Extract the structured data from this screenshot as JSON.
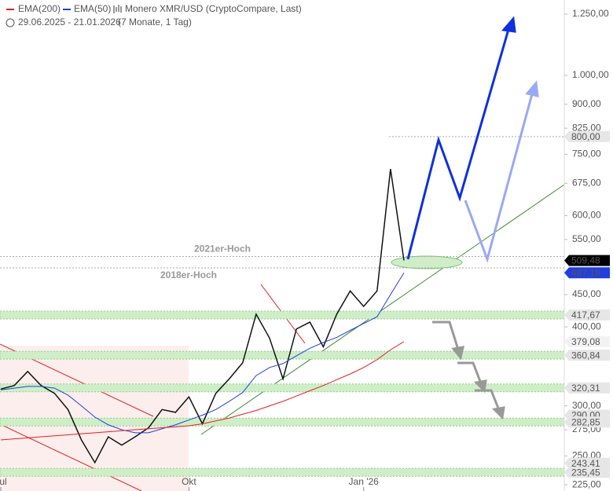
{
  "chart_data": {
    "type": "line",
    "title": "Monero XMR/USD (CryptoCompare, Last)",
    "date_range": "29.06.2025 - 21.01.2026",
    "period": "(7 Monate, 1 Tag)",
    "categories": [
      "Jul",
      null,
      null,
      null,
      null,
      null,
      null,
      null,
      null,
      null,
      null,
      null,
      null,
      null,
      "Okt",
      null,
      null,
      null,
      null,
      null,
      null,
      null,
      null,
      null,
      null,
      null,
      null,
      "Jan '26",
      null,
      null,
      null
    ],
    "series": [
      {
        "name": null,
        "color": "#111111",
        "values": [
          319,
          323,
          340,
          323,
          314,
          296,
          265,
          244,
          268,
          260,
          268,
          277,
          296,
          293,
          310,
          281,
          314,
          331,
          351,
          419,
          384,
          331,
          397,
          407,
          372,
          419,
          456,
          431,
          456,
          711,
          509.48
        ]
      },
      {
        "name": "EMA(50)",
        "color": "#1f3fe0",
        "values": [
          318,
          320,
          322,
          322,
          320,
          312,
          300,
          288,
          280,
          275,
          272,
          272,
          276,
          280,
          285,
          290,
          296,
          305,
          315,
          335,
          345,
          350,
          360,
          370,
          378,
          385,
          395,
          405,
          415,
          450,
          487.19
        ]
      },
      {
        "name": "EMA(200)",
        "color": "#e02020",
        "values": [
          265,
          266,
          267,
          268,
          269,
          270,
          271,
          272,
          273,
          274,
          275,
          276,
          277,
          278,
          279,
          281,
          284,
          287,
          291,
          295,
          300,
          305,
          311,
          317,
          323,
          330,
          337,
          345,
          355,
          368,
          379.08
        ]
      }
    ],
    "log_scale": true,
    "ylim": [
      220,
      1316
    ],
    "yticks": [
      {
        "value": 225,
        "label": "225,00"
      },
      {
        "value": 250,
        "label": "250,00"
      },
      {
        "value": 275,
        "label": "275,00"
      },
      {
        "value": 300,
        "label": "300,00"
      },
      {
        "value": 400,
        "label": "400,00"
      },
      {
        "value": 450,
        "label": "450,00"
      },
      {
        "value": 550,
        "label": "550,00"
      },
      {
        "value": 600,
        "label": "600,00"
      },
      {
        "value": 675,
        "label": "675,00"
      },
      {
        "value": 750,
        "label": "750,00"
      },
      {
        "value": 825,
        "label": "825,00"
      },
      {
        "value": 900,
        "label": "900,00"
      },
      {
        "value": 1000,
        "label": "1.000,00"
      },
      {
        "value": 1250,
        "label": "1.250,00"
      }
    ],
    "price_tags": [
      {
        "value": 800,
        "label": "800,00",
        "bg": "#e6e6e6",
        "fg": "#222222",
        "zone": false
      },
      {
        "value": 509.48,
        "label": "509,48",
        "bg": "#000000",
        "fg": "#ffffff",
        "zone": false
      },
      {
        "value": 487.19,
        "label": "487,19",
        "bg": "#1f3fe0",
        "fg": "#ffffff",
        "zone": false
      },
      {
        "value": 417.67,
        "label": "417,67",
        "bg": "#e6e6e6",
        "fg": "#222222",
        "zone": true
      },
      {
        "value": 379.08,
        "label": "379,08",
        "bg": "#f2f2f2",
        "fg": "#e02020",
        "zone": false
      },
      {
        "value": 360.84,
        "label": "360,84",
        "bg": "#e6e6e6",
        "fg": "#222222",
        "zone": true
      },
      {
        "value": 320.31,
        "label": "320,31",
        "bg": "#e6e6e6",
        "fg": "#222222",
        "zone": true
      },
      {
        "value": 290,
        "label": "290,00",
        "bg": "#e6e6e6",
        "fg": "#222222",
        "zone": false
      },
      {
        "value": 282.85,
        "label": "282,85",
        "bg": "#e6e6e6",
        "fg": "#222222",
        "zone": true
      },
      {
        "value": 243.41,
        "label": "243,41",
        "bg": "#e6e6e6",
        "fg": "#222222",
        "zone": false
      },
      {
        "value": 235.45,
        "label": "235,45",
        "bg": "#e6e6e6",
        "fg": "#222222",
        "zone": true
      }
    ],
    "annotations": [
      {
        "text": "2021er-Hoch",
        "value": 517
      },
      {
        "text": "2018er-Hoch",
        "value": 496
      }
    ]
  }
}
